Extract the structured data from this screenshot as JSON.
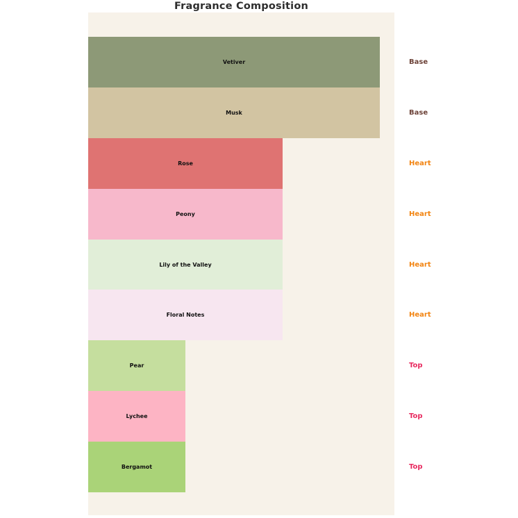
{
  "title": "Fragrance Composition",
  "colors": {
    "page_background": "#ffffff",
    "plot_background": "#f7f2e9",
    "title_text": "#2e2e2e",
    "bar_label_text": "#111111",
    "layer_label_colors": {
      "Base": "#6d4339",
      "Heart": "#f28411",
      "Top": "#e8295f"
    }
  },
  "chart_data": {
    "type": "bar",
    "orientation": "horizontal",
    "title": "Fragrance Composition",
    "xlabel": "",
    "ylabel": "",
    "xlim": [
      0,
      31.5
    ],
    "axes_visible": false,
    "grid": false,
    "legend": "none",
    "categories": [
      "Vetiver",
      "Musk",
      "Rose",
      "Peony",
      "Lily of the Valley",
      "Floral Notes",
      "Pear",
      "Lychee",
      "Bergamot"
    ],
    "values": [
      30,
      30,
      20,
      20,
      20,
      20,
      10,
      10,
      10
    ],
    "layers": [
      "Base",
      "Base",
      "Heart",
      "Heart",
      "Heart",
      "Heart",
      "Top",
      "Top",
      "Top"
    ],
    "bar_colors": [
      "#8d9977",
      "#d2c4a2",
      "#df7372",
      "#f7b8cb",
      "#e1eed8",
      "#f7e6f0",
      "#c5de9e",
      "#fdb4c4",
      "#aad378"
    ],
    "layer_labels_right": [
      "Base",
      "Base",
      "Heart",
      "Heart",
      "Heart",
      "Heart",
      "Top",
      "Top",
      "Top"
    ]
  }
}
